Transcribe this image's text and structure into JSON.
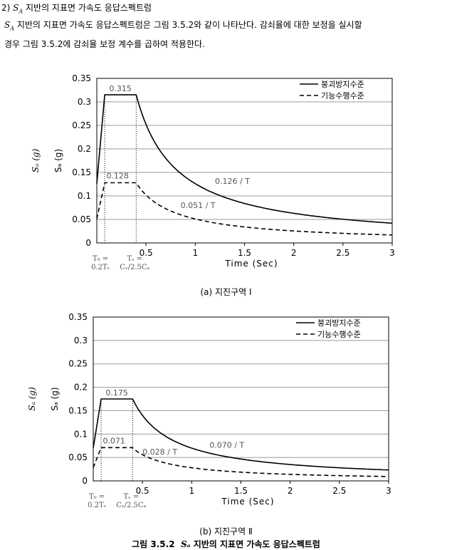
{
  "heading": {
    "number": "2)",
    "symbol": "S",
    "subscript": "A",
    "text": "지반의 지표면 가속도 응답스펙트럼"
  },
  "paragraph": {
    "line1": "지반의 지표면 가속도 응답스펙트럼은 그림 3.5.2와 같이 나타난다. 감쇠율에 대한 보정을 실시할",
    "line2": "경우 그림 3.5.2에 감쇠율 보정 계수를 곱하여 적용한다."
  },
  "charts": [
    {
      "caption": "(a) 지진구역 Ⅰ",
      "ylabel_italic": "Sₐ (g)",
      "ylabel": "Sₐ (g)",
      "xlabel": "Time (Sec)",
      "yticks": [
        "0",
        "0.05",
        "0.1",
        "0.15",
        "0.2",
        "0.25",
        "0.3",
        "0.35"
      ],
      "xticks": [
        "0.5",
        "1",
        "1.5",
        "2",
        "2.5",
        "3"
      ],
      "legend": [
        "붕괴방지수준",
        "기능수행수준"
      ],
      "t0_label": [
        "T₀ =",
        "0.2Tₛ"
      ],
      "ts_label": [
        "Tₛ =",
        "Cᵥ/2.5Cₐ"
      ],
      "plateau_label_1": "0.315",
      "plateau_label_2": "0.128",
      "decay_label_1": "0.126 / T",
      "decay_label_2": "0.051 / T"
    },
    {
      "caption": "(b) 지진구역 Ⅱ",
      "ylabel_italic": "Sₐ (g)",
      "ylabel": "Sₐ (g)",
      "xlabel": "Time (Sec)",
      "yticks": [
        "0",
        "0.05",
        "0.1",
        "0.15",
        "0.2",
        "0.25",
        "0.3",
        "0.35"
      ],
      "xticks": [
        "0.5",
        "1",
        "1.5",
        "2",
        "2.5",
        "3"
      ],
      "legend": [
        "붕괴방지수준",
        "기능수행수준"
      ],
      "t0_label": [
        "T₀ =",
        "0.2Tₛ"
      ],
      "ts_label": [
        "Tₛ =",
        "Cᵥ/2.5Cₐ"
      ],
      "plateau_label_1": "0.175",
      "plateau_label_2": "0.071",
      "decay_label_1": "0.070 / T",
      "decay_label_2": "0.028 / T"
    }
  ],
  "figure_caption": {
    "prefix": "그림 3.5.2",
    "symbol": "Sₐ",
    "text": "지반의 지표면 가속도 응답스펙트럼"
  },
  "chart_data": [
    {
      "type": "line",
      "xlim": [
        0,
        3
      ],
      "ylim": [
        0,
        0.35
      ],
      "xticks": [
        0.5,
        1,
        1.5,
        2,
        2.5,
        3
      ],
      "yticks": [
        0,
        0.05,
        0.1,
        0.15,
        0.2,
        0.25,
        0.3,
        0.35
      ],
      "grid": true,
      "legend_position": "top-right",
      "series": [
        {
          "name": "붕괴방지수준",
          "style": "solid",
          "peak": 0.315,
          "T0": 0.08,
          "Ts": 0.4,
          "coef": 0.126
        },
        {
          "name": "기능수행수준",
          "style": "dashed",
          "peak": 0.128,
          "T0": 0.08,
          "Ts": 0.4,
          "coef": 0.051
        }
      ]
    },
    {
      "type": "line",
      "xlim": [
        0,
        3
      ],
      "ylim": [
        0,
        0.35
      ],
      "xticks": [
        0.5,
        1,
        1.5,
        2,
        2.5,
        3
      ],
      "yticks": [
        0,
        0.05,
        0.1,
        0.15,
        0.2,
        0.25,
        0.3,
        0.35
      ],
      "grid": true,
      "legend_position": "top-right",
      "series": [
        {
          "name": "붕괴방지수준",
          "style": "solid",
          "peak": 0.175,
          "T0": 0.08,
          "Ts": 0.4,
          "coef": 0.07
        },
        {
          "name": "기능수행수준",
          "style": "dashed",
          "peak": 0.071,
          "T0": 0.08,
          "Ts": 0.4,
          "coef": 0.028
        }
      ]
    }
  ]
}
